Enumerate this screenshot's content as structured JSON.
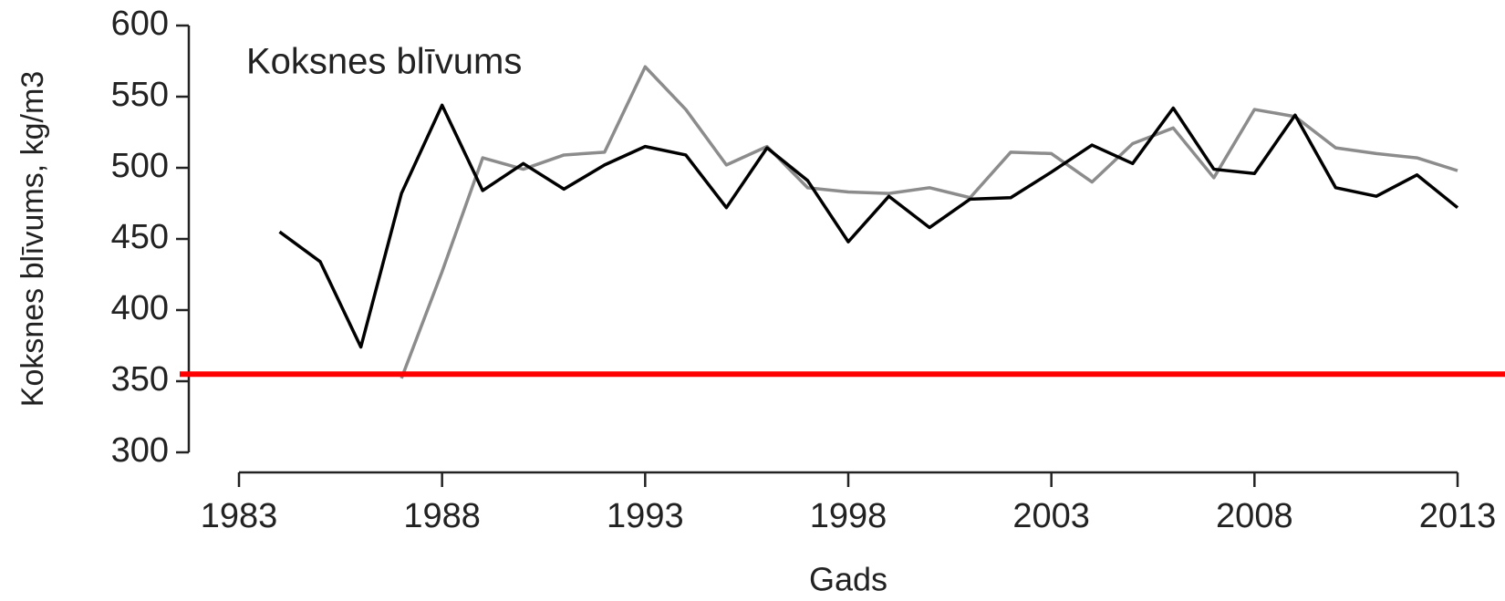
{
  "chart_data": {
    "type": "line",
    "annotation": "Koksnes blīvums",
    "xlabel": "Gads",
    "ylabel": "Koksnes blīvums, kg/m3",
    "x": [
      1984,
      1985,
      1986,
      1987,
      1988,
      1989,
      1990,
      1991,
      1992,
      1993,
      1994,
      1995,
      1996,
      1997,
      1998,
      1999,
      2000,
      2001,
      2002,
      2003,
      2004,
      2005,
      2006,
      2007,
      2008,
      2009,
      2010,
      2011,
      2012,
      2013
    ],
    "series": [
      {
        "color": "#000000",
        "values": [
          455,
          434,
          374,
          482,
          544,
          484,
          503,
          485,
          502,
          515,
          509,
          472,
          514,
          491,
          448,
          480,
          458,
          478,
          479,
          497,
          516,
          503,
          542,
          499,
          496,
          537,
          486,
          480,
          495,
          472
        ]
      },
      {
        "color": "#8c8c8c",
        "values": [
          null,
          null,
          null,
          352,
          427,
          507,
          499,
          509,
          511,
          571,
          541,
          502,
          515,
          486,
          483,
          482,
          486,
          479,
          511,
          510,
          490,
          517,
          528,
          493,
          541,
          536,
          514,
          510,
          507,
          498
        ]
      }
    ],
    "reference_line": {
      "value": 355,
      "color": "#ff0000"
    },
    "xlim": [
      1983,
      2013
    ],
    "xticks": [
      1983,
      1988,
      1993,
      1998,
      2003,
      2008,
      2013
    ],
    "ylim": [
      300,
      600
    ],
    "yticks": [
      300,
      350,
      400,
      450,
      500,
      550,
      600
    ],
    "grid": false
  }
}
